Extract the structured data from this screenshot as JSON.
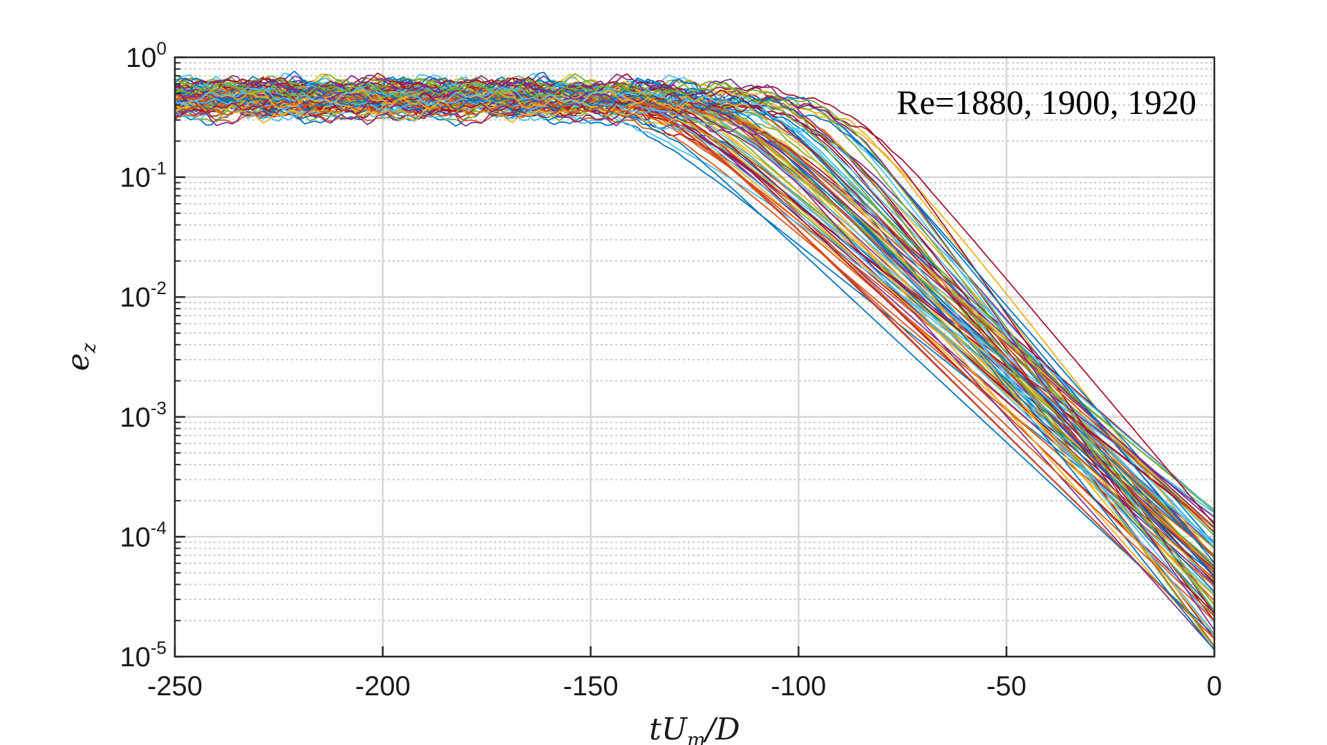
{
  "chart_data": {
    "type": "line",
    "title": "",
    "xlabel": {
      "base": "tU",
      "sub": "m",
      "tail": "/D"
    },
    "ylabel": {
      "base": "e",
      "sub": "z"
    },
    "xlim": [
      -250,
      0
    ],
    "ylim": [
      1e-05,
      1
    ],
    "yscale": "log",
    "grid": true,
    "minor_grid": true,
    "x_ticks": [
      -250,
      -200,
      -150,
      -100,
      -50,
      0
    ],
    "x_tick_labels": [
      "-250",
      "-200",
      "-150",
      "-100",
      "-50",
      "0"
    ],
    "y_ticks": [
      {
        "value": 1,
        "base": "10",
        "exp": "0"
      },
      {
        "value": 0.1,
        "base": "10",
        "exp": "-1"
      },
      {
        "value": 0.01,
        "base": "10",
        "exp": "-2"
      },
      {
        "value": 0.001,
        "base": "10",
        "exp": "-3"
      },
      {
        "value": 0.0001,
        "base": "10",
        "exp": "-4"
      },
      {
        "value": 1e-05,
        "base": "10",
        "exp": "-5"
      }
    ],
    "annotation": "Re=1880, 1900, 1920",
    "series_description": {
      "count": 90,
      "plateau_level_range": [
        0.32,
        0.62
      ],
      "decay_onset_range": [
        -140,
        -85
      ],
      "final_value_range": [
        1.1e-05,
        0.00017
      ]
    },
    "series_colors": [
      "#0072BD",
      "#D95319",
      "#EDB120",
      "#7E2F8E",
      "#77AC30",
      "#4DBEEE",
      "#A2142F"
    ]
  }
}
